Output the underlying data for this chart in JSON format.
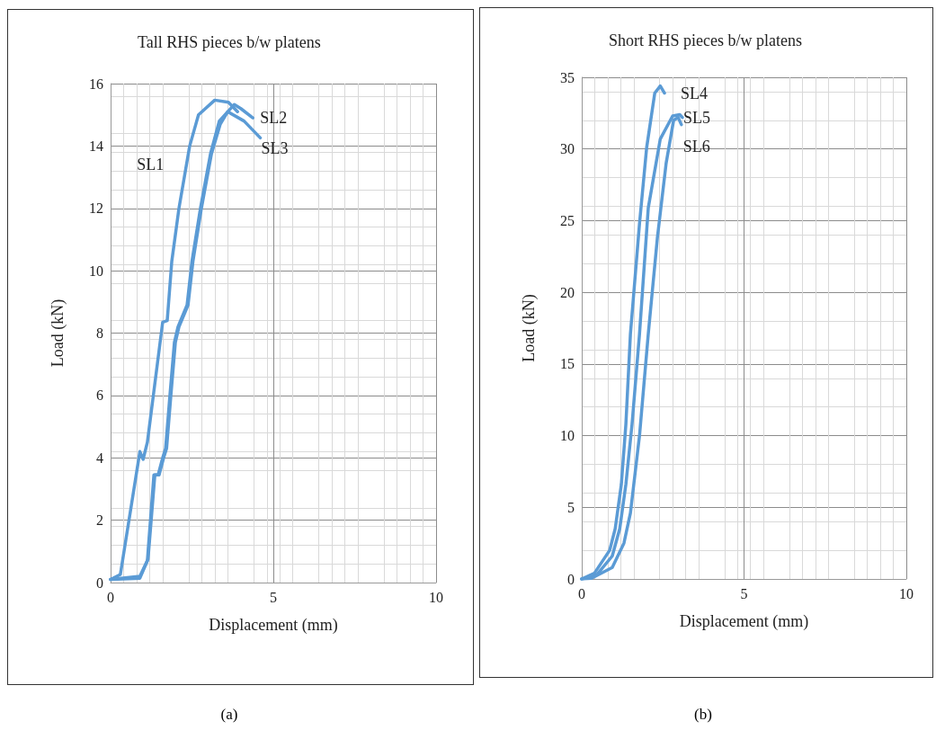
{
  "chart_data": [
    {
      "type": "line",
      "title": "Tall RHS pieces b/w platens",
      "xlabel": "Displacement (mm)",
      "ylabel": "Load (kN)",
      "xlim": [
        0,
        10
      ],
      "xticks": [
        0,
        5,
        10
      ],
      "ylim": [
        0,
        16
      ],
      "yticks": [
        0,
        2,
        4,
        6,
        8,
        10,
        12,
        14,
        16
      ],
      "grid": true,
      "marker": "none",
      "series": [
        {
          "name": "SL1",
          "color": "#5b9bd5",
          "x": [
            0,
            0.3,
            0.9,
            1.0,
            1.13,
            1.6,
            1.74,
            1.88,
            2.1,
            2.43,
            2.7,
            3.2,
            3.62,
            3.9
          ],
          "values": [
            0.1,
            0.26,
            4.2,
            3.95,
            4.5,
            8.35,
            8.4,
            10.3,
            12.0,
            14.0,
            15.0,
            15.47,
            15.4,
            15.1
          ]
        },
        {
          "name": "SL2",
          "color": "#5b9bd5",
          "x": [
            0,
            0.9,
            1.13,
            1.33,
            1.46,
            1.6,
            1.69,
            1.82,
            1.96,
            2.07,
            2.35,
            2.5,
            2.76,
            3.07,
            3.34,
            3.8,
            4.0,
            4.37
          ],
          "values": [
            0.1,
            0.14,
            0.7,
            3.45,
            3.45,
            4.0,
            4.3,
            5.97,
            7.7,
            8.2,
            8.9,
            10.3,
            12.0,
            13.75,
            14.8,
            15.33,
            15.2,
            14.9
          ]
        },
        {
          "name": "SL3",
          "color": "#5b9bd5",
          "x": [
            0,
            0.9,
            1.15,
            1.36,
            1.49,
            1.63,
            1.72,
            1.85,
            1.99,
            2.1,
            2.38,
            2.53,
            2.79,
            3.1,
            3.37,
            3.6,
            4.1,
            4.6
          ],
          "values": [
            0.1,
            0.2,
            0.75,
            3.45,
            3.45,
            4.0,
            4.3,
            5.97,
            7.7,
            8.2,
            8.9,
            10.3,
            12.0,
            13.75,
            14.7,
            15.1,
            14.8,
            14.26
          ]
        }
      ],
      "annotations": [
        "(a)"
      ]
    },
    {
      "type": "line",
      "title": "Short RHS pieces b/w platens",
      "xlabel": "Displacement (mm)",
      "ylabel": "Load (kN)",
      "xlim": [
        0,
        10
      ],
      "xticks": [
        0,
        5,
        10
      ],
      "ylim": [
        0,
        35
      ],
      "yticks": [
        0,
        5,
        10,
        15,
        20,
        25,
        30,
        35
      ],
      "grid": true,
      "marker": "none",
      "series": [
        {
          "name": "SL4",
          "color": "#5b9bd5",
          "x": [
            0,
            0.39,
            0.86,
            1.03,
            1.22,
            1.36,
            1.5,
            1.78,
            2.0,
            2.25,
            2.42,
            2.55
          ],
          "values": [
            0,
            0.4,
            2.0,
            3.5,
            6.6,
            10.8,
            17.1,
            24.8,
            30.1,
            33.9,
            34.4,
            33.9
          ]
        },
        {
          "name": "SL5",
          "color": "#5b9bd5",
          "x": [
            0,
            0.47,
            0.94,
            1.17,
            1.36,
            1.55,
            1.78,
            2.05,
            2.42,
            2.8,
            3.02,
            3.1
          ],
          "values": [
            0,
            0.3,
            1.6,
            3.5,
            6.6,
            10.8,
            17.1,
            25.9,
            30.7,
            32.3,
            32.4,
            32.2
          ]
        },
        {
          "name": "SL6",
          "color": "#5b9bd5",
          "x": [
            0,
            0.3,
            0.94,
            1.3,
            1.5,
            1.78,
            2.05,
            2.33,
            2.6,
            2.83,
            2.97,
            3.07
          ],
          "values": [
            0,
            0.05,
            0.8,
            2.5,
            4.6,
            10.0,
            17.1,
            23.8,
            29.0,
            32.0,
            32.2,
            31.7
          ]
        }
      ],
      "annotations": [
        "(b)"
      ]
    }
  ]
}
